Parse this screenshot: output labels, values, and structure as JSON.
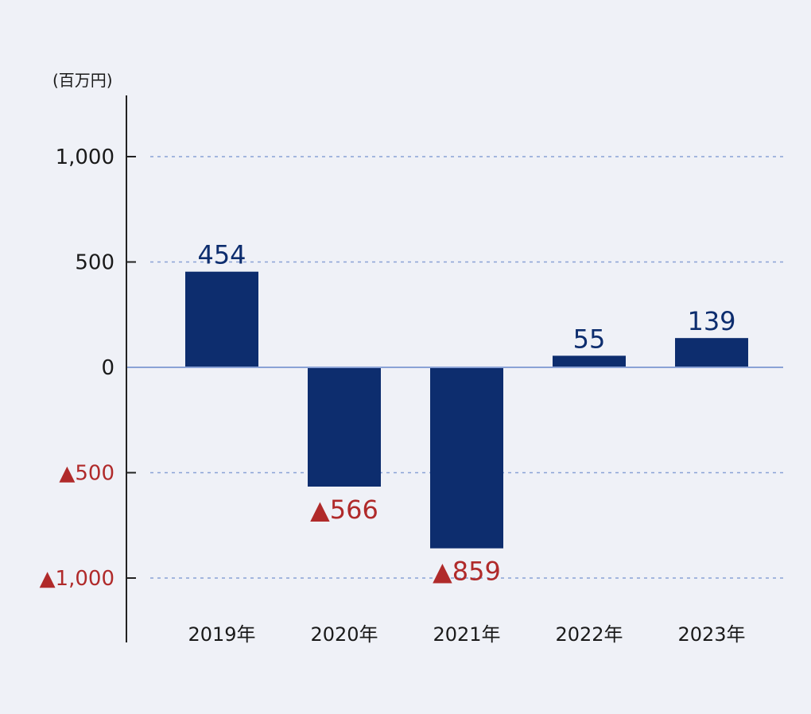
{
  "chart_data": {
    "type": "bar",
    "unit_label": "(百万円)",
    "categories": [
      "2019年",
      "2020年",
      "2021年",
      "2022年",
      "2023年"
    ],
    "values": [
      454,
      -566,
      -859,
      55,
      139
    ],
    "data_labels": [
      "454",
      "▲566",
      "▲859",
      "55",
      "139"
    ],
    "ylim": [
      -1200,
      1300
    ],
    "yticks": [
      1000,
      500,
      0,
      -500,
      -1000
    ],
    "ytick_labels": [
      "1,000",
      "500",
      "0",
      "▲500",
      "▲1,000"
    ],
    "grid": true,
    "legend": "none",
    "colors": {
      "bar": "#0d2d6e",
      "positive_text": "#0d2d6e",
      "negative_text": "#b02a2a",
      "grid": "#8aa2d6",
      "axis": "#222222",
      "zero_line": "#8aa2d6"
    }
  }
}
